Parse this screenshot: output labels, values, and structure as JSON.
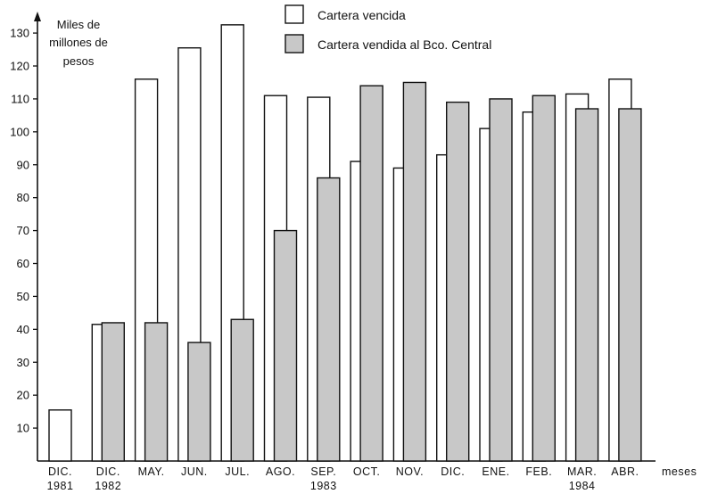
{
  "chart_data": {
    "type": "bar",
    "ylabel": [
      "Miles de",
      "millones de",
      "pesos"
    ],
    "xlabel": "meses",
    "ylim": [
      0,
      135
    ],
    "yticks": [
      10,
      20,
      30,
      40,
      50,
      60,
      70,
      80,
      90,
      100,
      110,
      120,
      130
    ],
    "categories": [
      "DIC.",
      "DIC.",
      "MAY.",
      "JUN.",
      "JUL.",
      "AGO.",
      "SEP.",
      "OCT.",
      "NOV.",
      "DIC.",
      "ENE.",
      "FEB.",
      "MAR.",
      "ABR."
    ],
    "year_labels": [
      {
        "index": 0,
        "text": "1981"
      },
      {
        "index": 1,
        "text": "1982"
      },
      {
        "index": 6,
        "text": "1983"
      },
      {
        "index": 12,
        "text": "1984"
      }
    ],
    "legend": {
      "placement": "top-center"
    },
    "series": [
      {
        "name": "Cartera vencida",
        "color": "#ffffff",
        "values": [
          15.5,
          41.5,
          116,
          125.5,
          132.5,
          111,
          110.5,
          91,
          89,
          93,
          101,
          106,
          111.5,
          116
        ]
      },
      {
        "name": "Cartera vendida al Bco. Central",
        "color": "#c8c8c8",
        "values": [
          null,
          42,
          42,
          36,
          43,
          70,
          86,
          114,
          115,
          109,
          110,
          111,
          107,
          107
        ]
      }
    ]
  }
}
